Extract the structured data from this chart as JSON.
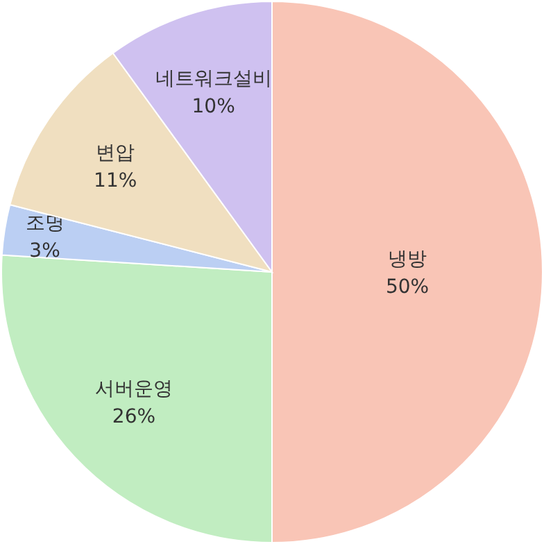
{
  "chart_data": {
    "type": "pie",
    "categories": [
      "냉방",
      "서버운영",
      "조명",
      "변압",
      "네트워크설비"
    ],
    "values": [
      50,
      26,
      3,
      11,
      10
    ],
    "colors": [
      "#f9c5b6",
      "#c1edc1",
      "#bbcff3",
      "#f0dfc0",
      "#cfc1f0"
    ],
    "value_labels": [
      "50%",
      "26%",
      "3%",
      "11%",
      "10%"
    ]
  }
}
